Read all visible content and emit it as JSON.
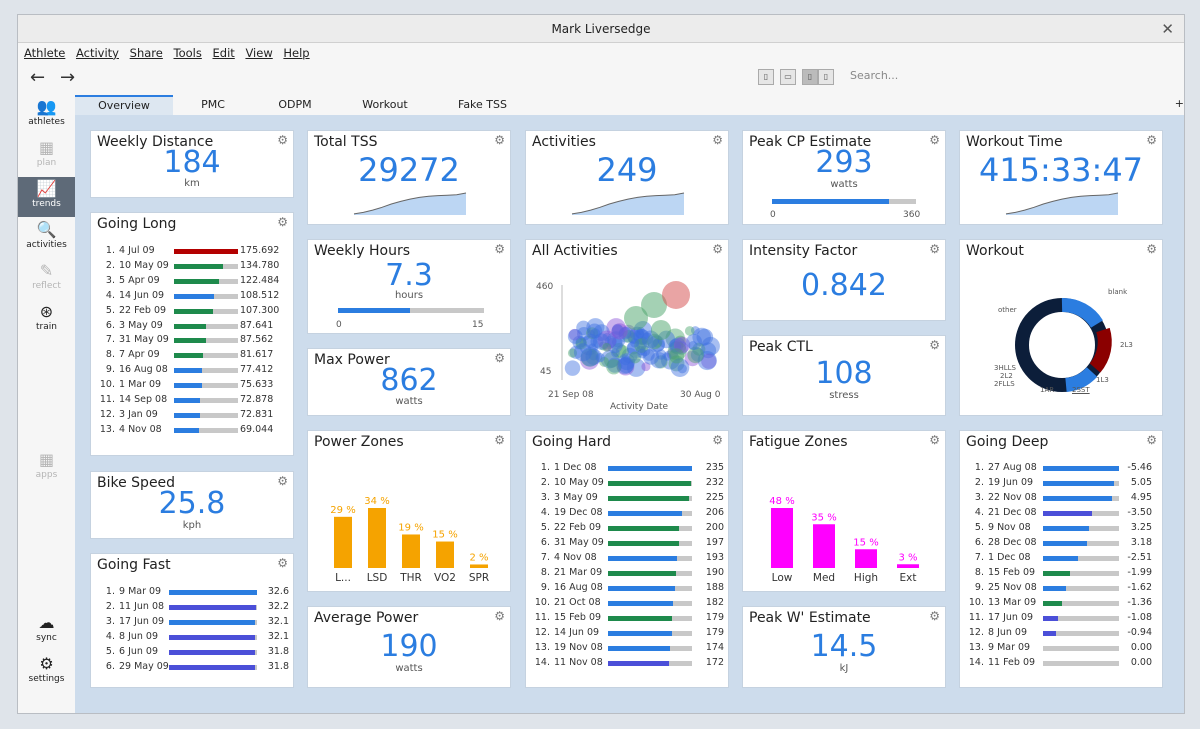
{
  "window": {
    "title": "Mark Liversedge",
    "close": "✕"
  },
  "menu": [
    "Athlete",
    "Activity",
    "Share",
    "Tools",
    "Edit",
    "View",
    "Help"
  ],
  "search": {
    "placeholder": "Search..."
  },
  "nav": {
    "back": "←",
    "forward": "→"
  },
  "sidebar": [
    {
      "label": "athletes",
      "icon": "athletes-icon",
      "glyph": "👥",
      "state": "normal"
    },
    {
      "label": "plan",
      "icon": "plan-icon",
      "glyph": "▦",
      "state": "dim"
    },
    {
      "label": "trends",
      "icon": "trends-icon",
      "glyph": "📈",
      "state": "active"
    },
    {
      "label": "activities",
      "icon": "activities-icon",
      "glyph": "🔍",
      "state": "normal"
    },
    {
      "label": "reflect",
      "icon": "reflect-icon",
      "glyph": "✎",
      "state": "dim"
    },
    {
      "label": "train",
      "icon": "train-icon",
      "glyph": "⊛",
      "state": "normal"
    },
    {
      "label": "apps",
      "icon": "apps-icon",
      "glyph": "▦",
      "state": "dim"
    },
    {
      "label": "sync",
      "icon": "sync-icon",
      "glyph": "☁",
      "state": "normal"
    },
    {
      "label": "settings",
      "icon": "settings-icon",
      "glyph": "⚙",
      "state": "normal"
    }
  ],
  "tabs": [
    "Overview",
    "PMC",
    "ODPM",
    "Workout",
    "Fake TSS"
  ],
  "tab_add": "+",
  "tiles": {
    "weekly_distance": {
      "title": "Weekly Distance",
      "value": "184",
      "unit": "km"
    },
    "total_tss": {
      "title": "Total TSS",
      "value": "29272",
      "trend": [
        0.05,
        0.12,
        0.22,
        0.35,
        0.5,
        0.62,
        0.72,
        0.8,
        0.85,
        0.88,
        0.9,
        0.92,
        1.0
      ]
    },
    "activities": {
      "title": "Activities",
      "value": "249",
      "trend": [
        0.05,
        0.12,
        0.22,
        0.35,
        0.5,
        0.62,
        0.72,
        0.8,
        0.85,
        0.88,
        0.9,
        0.92,
        1.0
      ]
    },
    "peak_cp": {
      "title": "Peak CP Estimate",
      "value": "293",
      "unit": "watts",
      "min": "0",
      "max": "360",
      "fraction": 0.814
    },
    "workout_time": {
      "title": "Workout Time",
      "value": "415:33:47",
      "trend": [
        0.05,
        0.12,
        0.22,
        0.35,
        0.5,
        0.62,
        0.72,
        0.8,
        0.85,
        0.88,
        0.9,
        0.92,
        1.0
      ]
    },
    "going_long": {
      "title": "Going Long",
      "rows": [
        {
          "n": "1.",
          "date": "4 Jul 09",
          "value": "175.692",
          "frac": 1.0,
          "color": "#b30000"
        },
        {
          "n": "2.",
          "date": "10 May 09",
          "value": "134.780",
          "frac": 0.77,
          "color": "#1e8a4c"
        },
        {
          "n": "3.",
          "date": "5 Apr 09",
          "value": "122.484",
          "frac": 0.7,
          "color": "#1e8a4c"
        },
        {
          "n": "4.",
          "date": "14 Jun 09",
          "value": "108.512",
          "frac": 0.62,
          "color": "#2b7de0"
        },
        {
          "n": "5.",
          "date": "22 Feb 09",
          "value": "107.300",
          "frac": 0.61,
          "color": "#1e8a4c"
        },
        {
          "n": "6.",
          "date": "3 May 09",
          "value": "87.641",
          "frac": 0.5,
          "color": "#1e8a4c"
        },
        {
          "n": "7.",
          "date": "31 May 09",
          "value": "87.562",
          "frac": 0.5,
          "color": "#1e8a4c"
        },
        {
          "n": "8.",
          "date": "7 Apr 09",
          "value": "81.617",
          "frac": 0.46,
          "color": "#1e8a4c"
        },
        {
          "n": "9.",
          "date": "16 Aug 08",
          "value": "77.412",
          "frac": 0.44,
          "color": "#2b7de0"
        },
        {
          "n": "10.",
          "date": "1 Mar 09",
          "value": "75.633",
          "frac": 0.43,
          "color": "#2b7de0"
        },
        {
          "n": "11.",
          "date": "14 Sep 08",
          "value": "72.878",
          "frac": 0.41,
          "color": "#2b7de0"
        },
        {
          "n": "12.",
          "date": "3 Jan 09",
          "value": "72.831",
          "frac": 0.41,
          "color": "#2b7de0"
        },
        {
          "n": "13.",
          "date": "4 Nov 08",
          "value": "69.044",
          "frac": 0.39,
          "color": "#2b7de0"
        }
      ]
    },
    "weekly_hours": {
      "title": "Weekly Hours",
      "value": "7.3",
      "unit": "hours",
      "min": "0",
      "max": "15",
      "fraction": 0.49
    },
    "all_activities": {
      "title": "All Activities",
      "y_max": "460",
      "y_min": "45",
      "x_start": "21 Sep 08",
      "x_end": "30 Aug 0",
      "xlabel": "Activity Date"
    },
    "intensity_factor": {
      "title": "Intensity Factor",
      "value": "0.842"
    },
    "workout": {
      "title": "Workout",
      "labels": [
        "blank",
        "other",
        "2L3",
        "3HLLS",
        "2L2",
        "2FLLS",
        "1AR",
        "2SST",
        "1L3"
      ]
    },
    "max_power": {
      "title": "Max Power",
      "value": "862",
      "unit": "watts"
    },
    "peak_ctl": {
      "title": "Peak CTL",
      "value": "108",
      "unit": "stress"
    },
    "bike_speed": {
      "title": "Bike Speed",
      "value": "25.8",
      "unit": "kph"
    },
    "going_fast": {
      "title": "Going Fast",
      "rows": [
        {
          "n": "1.",
          "date": "9 Mar 09",
          "value": "32.6",
          "frac": 1.0,
          "color": "#2b7de0"
        },
        {
          "n": "2.",
          "date": "11 Jun 08",
          "value": "32.2",
          "frac": 0.99,
          "color": "#4b4fd8"
        },
        {
          "n": "3.",
          "date": "17 Jun 09",
          "value": "32.1",
          "frac": 0.98,
          "color": "#2b7de0"
        },
        {
          "n": "4.",
          "date": "8 Jun 09",
          "value": "32.1",
          "frac": 0.98,
          "color": "#4b4fd8"
        },
        {
          "n": "5.",
          "date": "6 Jun 09",
          "value": "31.8",
          "frac": 0.975,
          "color": "#4b4fd8"
        },
        {
          "n": "6.",
          "date": "29 May 09",
          "value": "31.8",
          "frac": 0.975,
          "color": "#4b4fd8"
        }
      ]
    },
    "power_zones": {
      "title": "Power Zones",
      "bars": [
        {
          "label": "L...",
          "pct": "29 %",
          "value": 29
        },
        {
          "label": "LSD",
          "pct": "34 %",
          "value": 34
        },
        {
          "label": "THR",
          "pct": "19 %",
          "value": 19
        },
        {
          "label": "VO2",
          "pct": "15 %",
          "value": 15
        },
        {
          "label": "SPR",
          "pct": "2 %",
          "value": 2
        }
      ],
      "color": "#f5a300"
    },
    "going_hard": {
      "title": "Going Hard",
      "rows": [
        {
          "n": "1.",
          "date": "1 Dec 08",
          "value": "235",
          "frac": 1.0,
          "color": "#2b7de0"
        },
        {
          "n": "2.",
          "date": "10 May 09",
          "value": "232",
          "frac": 0.99,
          "color": "#1e8a4c"
        },
        {
          "n": "3.",
          "date": "3 May 09",
          "value": "225",
          "frac": 0.96,
          "color": "#1e8a4c"
        },
        {
          "n": "4.",
          "date": "19 Dec 08",
          "value": "206",
          "frac": 0.88,
          "color": "#2b7de0"
        },
        {
          "n": "5.",
          "date": "22 Feb 09",
          "value": "200",
          "frac": 0.85,
          "color": "#1e8a4c"
        },
        {
          "n": "6.",
          "date": "31 May 09",
          "value": "197",
          "frac": 0.84,
          "color": "#1e8a4c"
        },
        {
          "n": "7.",
          "date": "4 Nov 08",
          "value": "193",
          "frac": 0.82,
          "color": "#2b7de0"
        },
        {
          "n": "8.",
          "date": "21 Mar 09",
          "value": "190",
          "frac": 0.81,
          "color": "#1e8a4c"
        },
        {
          "n": "9.",
          "date": "16 Aug 08",
          "value": "188",
          "frac": 0.8,
          "color": "#2b7de0"
        },
        {
          "n": "10.",
          "date": "21 Oct 08",
          "value": "182",
          "frac": 0.77,
          "color": "#2b7de0"
        },
        {
          "n": "11.",
          "date": "15 Feb 09",
          "value": "179",
          "frac": 0.76,
          "color": "#1e8a4c"
        },
        {
          "n": "12.",
          "date": "14 Jun 09",
          "value": "179",
          "frac": 0.76,
          "color": "#2b7de0"
        },
        {
          "n": "13.",
          "date": "19 Nov 08",
          "value": "174",
          "frac": 0.74,
          "color": "#2b7de0"
        },
        {
          "n": "14.",
          "date": "11 Nov 08",
          "value": "172",
          "frac": 0.73,
          "color": "#4b4fd8"
        }
      ]
    },
    "fatigue_zones": {
      "title": "Fatigue Zones",
      "bars": [
        {
          "label": "Low",
          "pct": "48 %",
          "value": 48
        },
        {
          "label": "Med",
          "pct": "35 %",
          "value": 35
        },
        {
          "label": "High",
          "pct": "15 %",
          "value": 15
        },
        {
          "label": "Ext",
          "pct": "3 %",
          "value": 3
        }
      ],
      "color": "#ff00ff"
    },
    "going_deep": {
      "title": "Going Deep",
      "rows": [
        {
          "n": "1.",
          "date": "27 Aug 08",
          "value": "-5.46",
          "frac": 1.0,
          "color": "#2b7de0"
        },
        {
          "n": "2.",
          "date": "19 Jun 09",
          "value": "5.05",
          "frac": 0.93,
          "color": "#2b7de0"
        },
        {
          "n": "3.",
          "date": "22 Nov 08",
          "value": "4.95",
          "frac": 0.91,
          "color": "#2b7de0"
        },
        {
          "n": "4.",
          "date": "21 Dec 08",
          "value": "-3.50",
          "frac": 0.64,
          "color": "#4b4fd8"
        },
        {
          "n": "5.",
          "date": "9 Nov 08",
          "value": "3.25",
          "frac": 0.6,
          "color": "#2b7de0"
        },
        {
          "n": "6.",
          "date": "28 Dec 08",
          "value": "3.18",
          "frac": 0.58,
          "color": "#2b7de0"
        },
        {
          "n": "7.",
          "date": "1 Dec 08",
          "value": "-2.51",
          "frac": 0.46,
          "color": "#2b7de0"
        },
        {
          "n": "8.",
          "date": "15 Feb 09",
          "value": "-1.99",
          "frac": 0.36,
          "color": "#1e8a4c"
        },
        {
          "n": "9.",
          "date": "25 Nov 08",
          "value": "-1.62",
          "frac": 0.3,
          "color": "#2b7de0"
        },
        {
          "n": "10.",
          "date": "13 Mar 09",
          "value": "-1.36",
          "frac": 0.25,
          "color": "#1e8a4c"
        },
        {
          "n": "11.",
          "date": "17 Jun 09",
          "value": "-1.08",
          "frac": 0.2,
          "color": "#4b4fd8"
        },
        {
          "n": "12.",
          "date": "8 Jun 09",
          "value": "-0.94",
          "frac": 0.17,
          "color": "#4b4fd8"
        },
        {
          "n": "13.",
          "date": "9 Mar 09",
          "value": "0.00",
          "frac": 0.0,
          "color": "#2b7de0"
        },
        {
          "n": "14.",
          "date": "11 Feb 09",
          "value": "0.00",
          "frac": 0.0,
          "color": "#2b7de0"
        }
      ]
    },
    "average_power": {
      "title": "Average Power",
      "value": "190",
      "unit": "watts"
    },
    "peak_w": {
      "title": "Peak W' Estimate",
      "value": "14.5",
      "unit": "kJ"
    }
  }
}
